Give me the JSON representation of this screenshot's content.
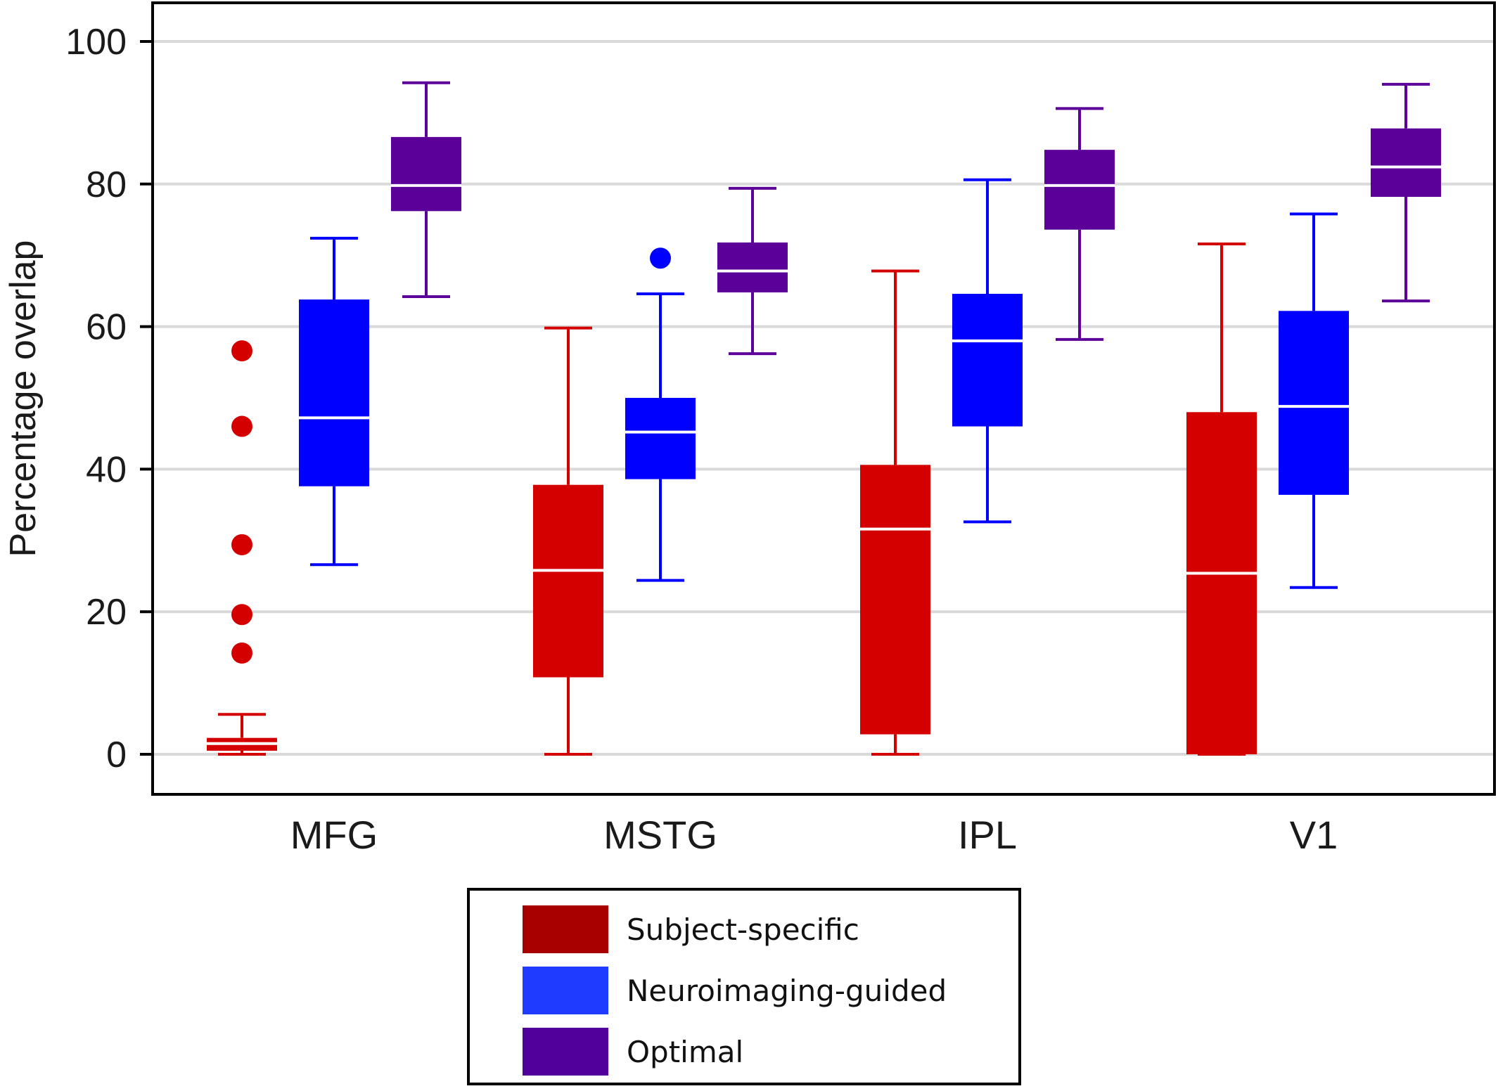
{
  "chart_data": {
    "type": "box",
    "title": "",
    "xlabel": "",
    "ylabel": "Percentage overlap",
    "ylim": [
      -5,
      105
    ],
    "yticks": [
      0,
      20,
      40,
      60,
      80,
      100
    ],
    "grid": true,
    "legend_position": "bottom-center",
    "categories": [
      "MFG",
      "MSTG",
      "IPL",
      "V1"
    ],
    "series": [
      {
        "name": "Subject-specific",
        "color": "#d40000",
        "legend_color": "#a80000",
        "boxes": [
          {
            "category": "MFG",
            "min": 0,
            "q1": 0.5,
            "median": 1.5,
            "q3": 2.3,
            "max": 5.6,
            "outliers": [
              14.2,
              19.6,
              29.4,
              46.0,
              56.6
            ]
          },
          {
            "category": "MSTG",
            "min": 0,
            "q1": 10.8,
            "median": 25.8,
            "q3": 37.8,
            "max": 59.8,
            "outliers": []
          },
          {
            "category": "IPL",
            "min": 0,
            "q1": 2.8,
            "median": 31.6,
            "q3": 40.6,
            "max": 67.8,
            "outliers": []
          },
          {
            "category": "V1",
            "min": 0,
            "q1": 0,
            "median": 25.4,
            "q3": 48.0,
            "max": 71.6,
            "outliers": []
          }
        ]
      },
      {
        "name": "Neuroimaging-guided",
        "color": "#0000ff",
        "legend_color": "#1f3bff",
        "boxes": [
          {
            "category": "MFG",
            "min": 26.6,
            "q1": 37.6,
            "median": 47.2,
            "q3": 63.8,
            "max": 72.4,
            "outliers": []
          },
          {
            "category": "MSTG",
            "min": 24.4,
            "q1": 38.6,
            "median": 45.2,
            "q3": 50.0,
            "max": 64.6,
            "outliers": [
              69.6
            ]
          },
          {
            "category": "IPL",
            "min": 32.6,
            "q1": 46.0,
            "median": 58.0,
            "q3": 64.6,
            "max": 80.6,
            "outliers": []
          },
          {
            "category": "V1",
            "min": 23.4,
            "q1": 36.4,
            "median": 48.8,
            "q3": 62.2,
            "max": 75.8,
            "outliers": []
          }
        ]
      },
      {
        "name": "Optimal",
        "color": "#5b0099",
        "legend_color": "#52009c",
        "boxes": [
          {
            "category": "MFG",
            "min": 64.2,
            "q1": 76.2,
            "median": 79.8,
            "q3": 86.6,
            "max": 94.2,
            "outliers": []
          },
          {
            "category": "MSTG",
            "min": 56.2,
            "q1": 64.8,
            "median": 67.8,
            "q3": 71.8,
            "max": 79.4,
            "outliers": []
          },
          {
            "category": "IPL",
            "min": 58.2,
            "q1": 73.6,
            "median": 79.8,
            "q3": 84.8,
            "max": 90.6,
            "outliers": []
          },
          {
            "category": "V1",
            "min": 63.6,
            "q1": 78.2,
            "median": 82.4,
            "q3": 87.8,
            "max": 94.0,
            "outliers": []
          }
        ]
      }
    ]
  }
}
